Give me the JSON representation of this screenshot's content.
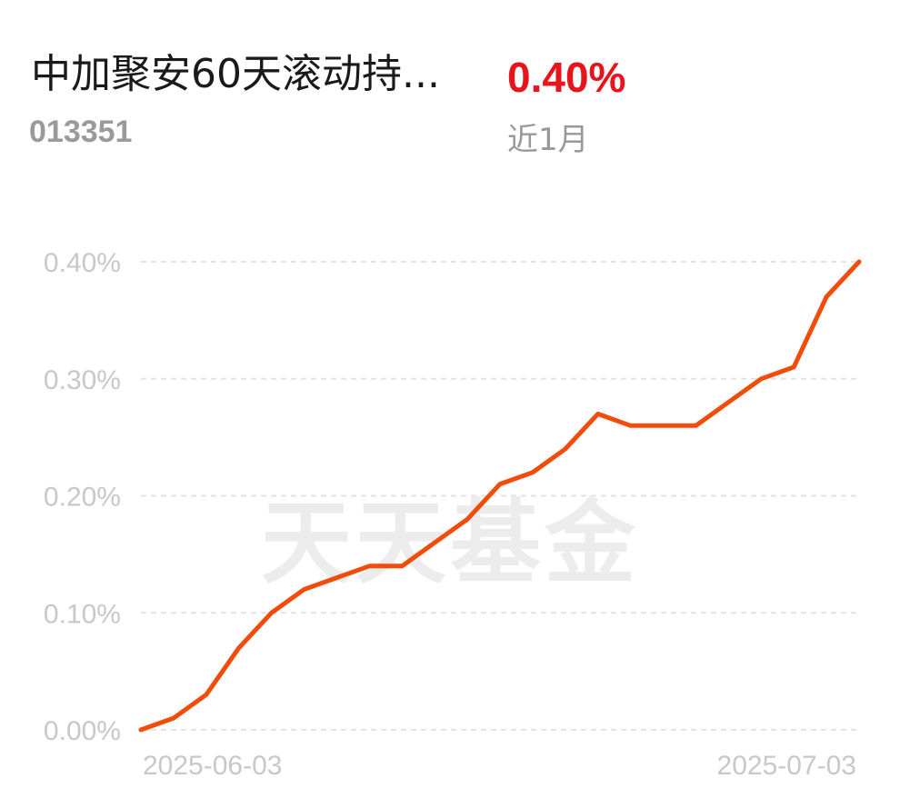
{
  "header": {
    "fund_name": "中加聚安60天滚动持...",
    "fund_code": "013351",
    "return_value": "0.40%",
    "period_label": "近1月"
  },
  "watermark": "天天基金",
  "colors": {
    "line": "#f04d0c",
    "return_value": "#e8141c",
    "tick_text": "#c8c8c8",
    "grid": "#e3e3e3"
  },
  "chart_data": {
    "type": "line",
    "x_start_label": "2025-06-03",
    "x_end_label": "2025-07-03",
    "y_ticks": [
      "0.00%",
      "0.10%",
      "0.20%",
      "0.30%",
      "0.40%"
    ],
    "ylim": [
      0,
      0.4
    ],
    "y_unit": "%",
    "grid": "horizontal-dashed",
    "series": [
      {
        "values": [
          0.0,
          0.01,
          0.03,
          0.07,
          0.1,
          0.12,
          0.13,
          0.14,
          0.14,
          0.16,
          0.18,
          0.21,
          0.22,
          0.24,
          0.27,
          0.26,
          0.26,
          0.26,
          0.28,
          0.3,
          0.31,
          0.37,
          0.4
        ]
      }
    ]
  }
}
